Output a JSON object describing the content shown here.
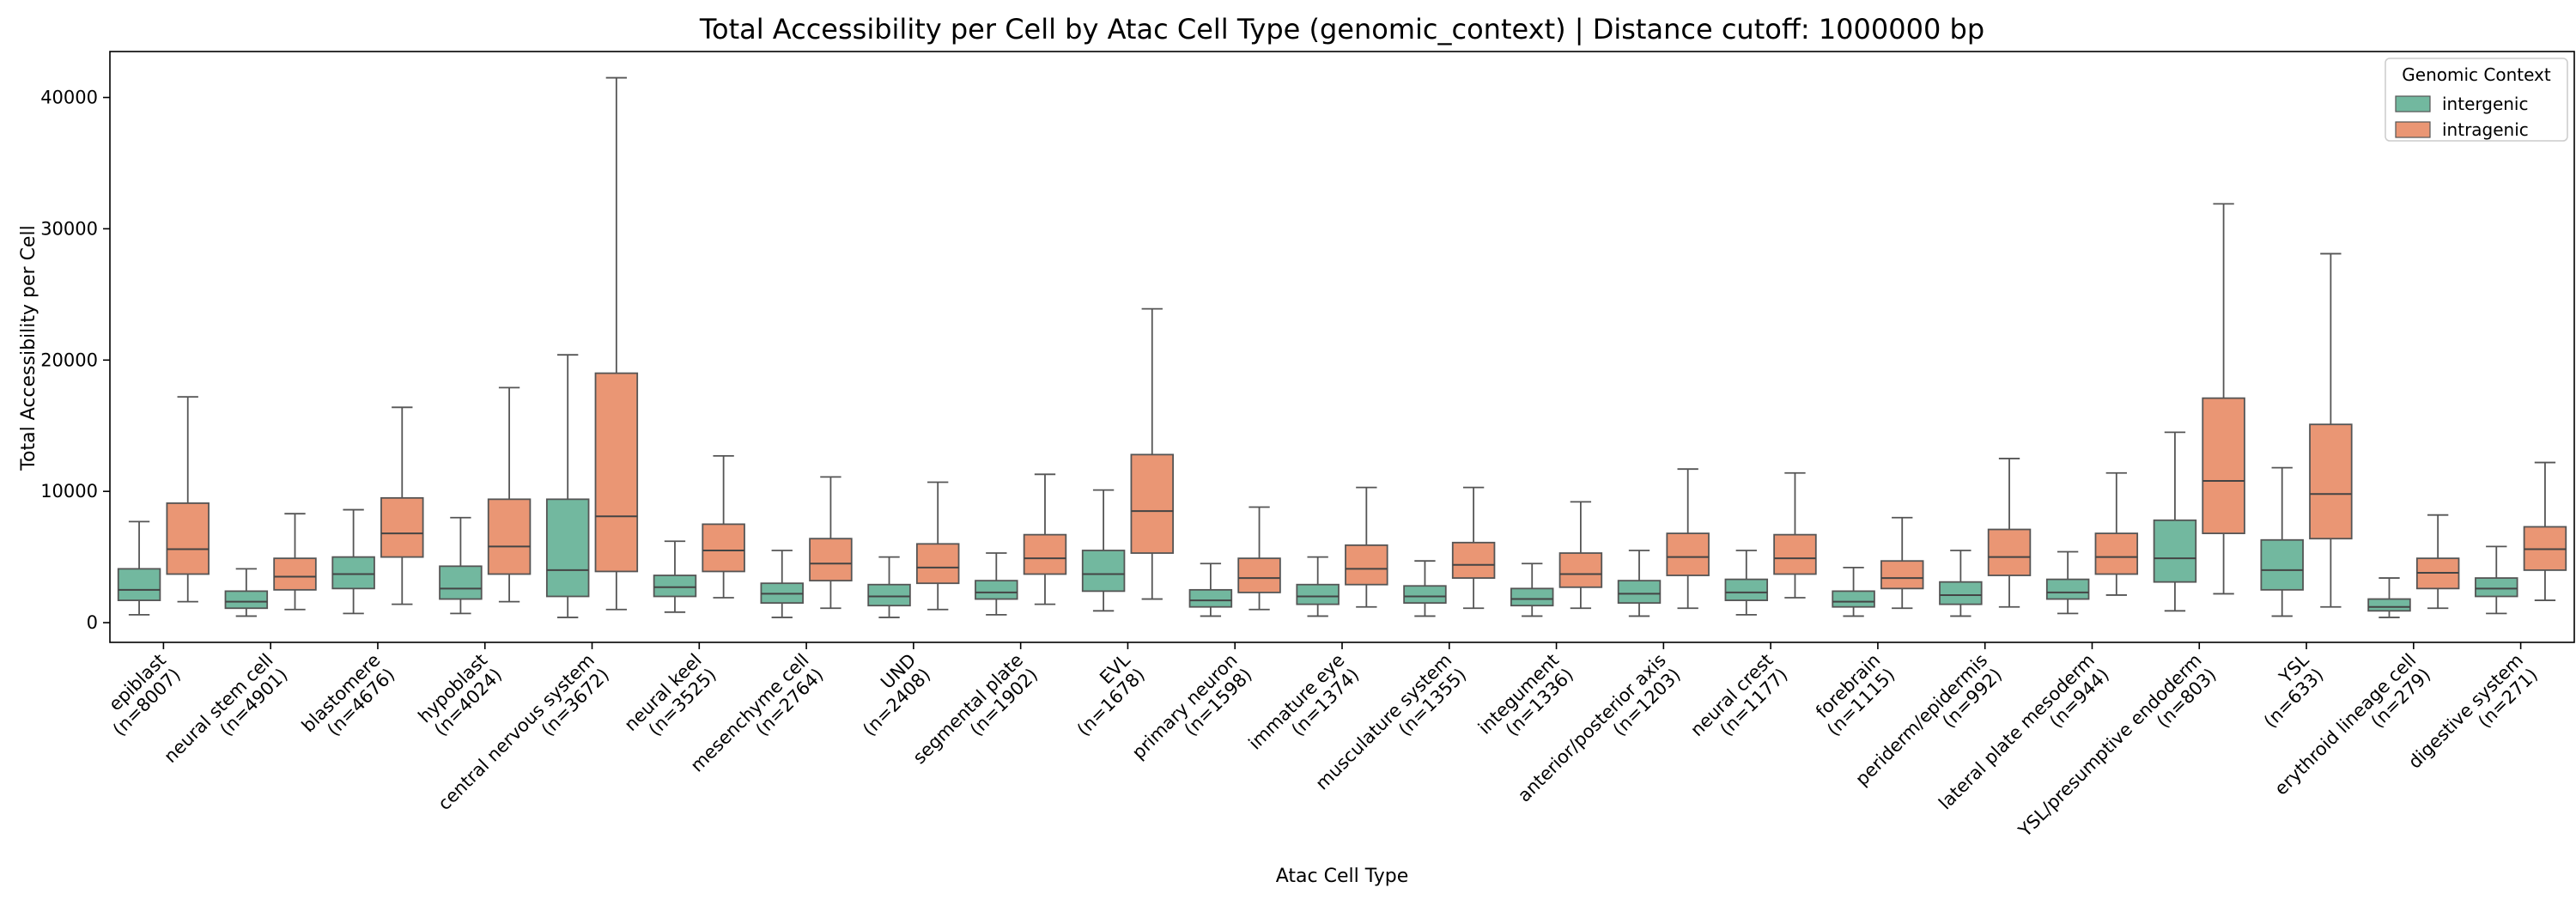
{
  "chart_data": {
    "type": "boxplot",
    "title": "Total Accessibility per Cell by Atac Cell Type (genomic_context) | Distance cutoff: 1000000 bp",
    "xlabel": "Atac Cell Type",
    "ylabel": "Total Accessibility per Cell",
    "ylim": [
      -1500,
      43500
    ],
    "yticks": [
      0,
      10000,
      20000,
      30000,
      40000
    ],
    "legend": {
      "title": "Genomic Context",
      "placement": "top-right",
      "entries": [
        "intergenic",
        "intragenic"
      ]
    },
    "colors": {
      "intergenic": "#72b89f",
      "intragenic": "#ea9674",
      "median_line": "#444444",
      "whisker": "#555555"
    },
    "categories": [
      {
        "name": "epiblast",
        "n": "(n=8007)"
      },
      {
        "name": "neural stem cell",
        "n": "(n=4901)"
      },
      {
        "name": "blastomere",
        "n": "(n=4676)"
      },
      {
        "name": "hypoblast",
        "n": "(n=4024)"
      },
      {
        "name": "central nervous system",
        "n": "(n=3672)"
      },
      {
        "name": "neural keel",
        "n": "(n=3525)"
      },
      {
        "name": "mesenchyme cell",
        "n": "(n=2764)"
      },
      {
        "name": "UND",
        "n": "(n=2408)"
      },
      {
        "name": "segmental plate",
        "n": "(n=1902)"
      },
      {
        "name": "EVL",
        "n": "(n=1678)"
      },
      {
        "name": "primary neuron",
        "n": "(n=1598)"
      },
      {
        "name": "immature eye",
        "n": "(n=1374)"
      },
      {
        "name": "musculature system",
        "n": "(n=1355)"
      },
      {
        "name": "integument",
        "n": "(n=1336)"
      },
      {
        "name": "anterior/posterior axis",
        "n": "(n=1203)"
      },
      {
        "name": "neural crest",
        "n": "(n=1177)"
      },
      {
        "name": "forebrain",
        "n": "(n=1115)"
      },
      {
        "name": "periderm/epidermis",
        "n": "(n=992)"
      },
      {
        "name": "lateral plate mesoderm",
        "n": "(n=944)"
      },
      {
        "name": "YSL/presumptive endoderm",
        "n": "(n=803)"
      },
      {
        "name": "YSL",
        "n": "(n=633)"
      },
      {
        "name": "erythroid lineage cell",
        "n": "(n=279)"
      },
      {
        "name": "digestive system",
        "n": "(n=271)"
      }
    ],
    "series": [
      {
        "name": "intergenic",
        "boxes": [
          {
            "min": 600,
            "q1": 1700,
            "median": 2500,
            "q3": 4100,
            "max": 7700
          },
          {
            "min": 500,
            "q1": 1100,
            "median": 1600,
            "q3": 2400,
            "max": 4100
          },
          {
            "min": 700,
            "q1": 2600,
            "median": 3700,
            "q3": 5000,
            "max": 8600
          },
          {
            "min": 700,
            "q1": 1800,
            "median": 2600,
            "q3": 4300,
            "max": 8000
          },
          {
            "min": 400,
            "q1": 2000,
            "median": 4000,
            "q3": 9400,
            "max": 20400
          },
          {
            "min": 800,
            "q1": 2000,
            "median": 2700,
            "q3": 3600,
            "max": 6200
          },
          {
            "min": 400,
            "q1": 1500,
            "median": 2200,
            "q3": 3000,
            "max": 5500
          },
          {
            "min": 400,
            "q1": 1300,
            "median": 2000,
            "q3": 2900,
            "max": 5000
          },
          {
            "min": 600,
            "q1": 1800,
            "median": 2300,
            "q3": 3200,
            "max": 5300
          },
          {
            "min": 900,
            "q1": 2400,
            "median": 3700,
            "q3": 5500,
            "max": 10100
          },
          {
            "min": 500,
            "q1": 1200,
            "median": 1700,
            "q3": 2500,
            "max": 4500
          },
          {
            "min": 500,
            "q1": 1400,
            "median": 2000,
            "q3": 2900,
            "max": 5000
          },
          {
            "min": 500,
            "q1": 1500,
            "median": 2000,
            "q3": 2800,
            "max": 4700
          },
          {
            "min": 500,
            "q1": 1300,
            "median": 1800,
            "q3": 2600,
            "max": 4500
          },
          {
            "min": 500,
            "q1": 1500,
            "median": 2200,
            "q3": 3200,
            "max": 5500
          },
          {
            "min": 600,
            "q1": 1700,
            "median": 2300,
            "q3": 3300,
            "max": 5500
          },
          {
            "min": 500,
            "q1": 1200,
            "median": 1600,
            "q3": 2400,
            "max": 4200
          },
          {
            "min": 500,
            "q1": 1400,
            "median": 2100,
            "q3": 3100,
            "max": 5500
          },
          {
            "min": 700,
            "q1": 1800,
            "median": 2300,
            "q3": 3300,
            "max": 5400
          },
          {
            "min": 900,
            "q1": 3100,
            "median": 4900,
            "q3": 7800,
            "max": 14500
          },
          {
            "min": 500,
            "q1": 2500,
            "median": 4000,
            "q3": 6300,
            "max": 11800
          },
          {
            "min": 400,
            "q1": 900,
            "median": 1200,
            "q3": 1800,
            "max": 3400
          },
          {
            "min": 700,
            "q1": 2000,
            "median": 2600,
            "q3": 3400,
            "max": 5800
          }
        ]
      },
      {
        "name": "intragenic",
        "boxes": [
          {
            "min": 1600,
            "q1": 3700,
            "median": 5600,
            "q3": 9100,
            "max": 17200
          },
          {
            "min": 1000,
            "q1": 2500,
            "median": 3500,
            "q3": 4900,
            "max": 8300
          },
          {
            "min": 1400,
            "q1": 5000,
            "median": 6800,
            "q3": 9500,
            "max": 16400
          },
          {
            "min": 1600,
            "q1": 3700,
            "median": 5800,
            "q3": 9400,
            "max": 17900
          },
          {
            "min": 1000,
            "q1": 3900,
            "median": 8100,
            "q3": 19000,
            "max": 41500
          },
          {
            "min": 1900,
            "q1": 3900,
            "median": 5500,
            "q3": 7500,
            "max": 12700
          },
          {
            "min": 1100,
            "q1": 3200,
            "median": 4500,
            "q3": 6400,
            "max": 11100
          },
          {
            "min": 1000,
            "q1": 3000,
            "median": 4200,
            "q3": 6000,
            "max": 10700
          },
          {
            "min": 1400,
            "q1": 3700,
            "median": 4900,
            "q3": 6700,
            "max": 11300
          },
          {
            "min": 1800,
            "q1": 5300,
            "median": 8500,
            "q3": 12800,
            "max": 23900
          },
          {
            "min": 1000,
            "q1": 2300,
            "median": 3400,
            "q3": 4900,
            "max": 8800
          },
          {
            "min": 1200,
            "q1": 2900,
            "median": 4100,
            "q3": 5900,
            "max": 10300
          },
          {
            "min": 1100,
            "q1": 3400,
            "median": 4400,
            "q3": 6100,
            "max": 10300
          },
          {
            "min": 1100,
            "q1": 2700,
            "median": 3700,
            "q3": 5300,
            "max": 9200
          },
          {
            "min": 1100,
            "q1": 3600,
            "median": 5000,
            "q3": 6800,
            "max": 11700
          },
          {
            "min": 1900,
            "q1": 3700,
            "median": 4900,
            "q3": 6700,
            "max": 11400
          },
          {
            "min": 1100,
            "q1": 2600,
            "median": 3400,
            "q3": 4700,
            "max": 8000
          },
          {
            "min": 1200,
            "q1": 3600,
            "median": 5000,
            "q3": 7100,
            "max": 12500
          },
          {
            "min": 2100,
            "q1": 3700,
            "median": 5000,
            "q3": 6800,
            "max": 11400
          },
          {
            "min": 2200,
            "q1": 6800,
            "median": 10800,
            "q3": 17100,
            "max": 31900
          },
          {
            "min": 1200,
            "q1": 6400,
            "median": 9800,
            "q3": 15100,
            "max": 28100
          },
          {
            "min": 1100,
            "q1": 2600,
            "median": 3800,
            "q3": 4900,
            "max": 8200
          },
          {
            "min": 1700,
            "q1": 4000,
            "median": 5600,
            "q3": 7300,
            "max": 12200
          }
        ]
      }
    ]
  }
}
